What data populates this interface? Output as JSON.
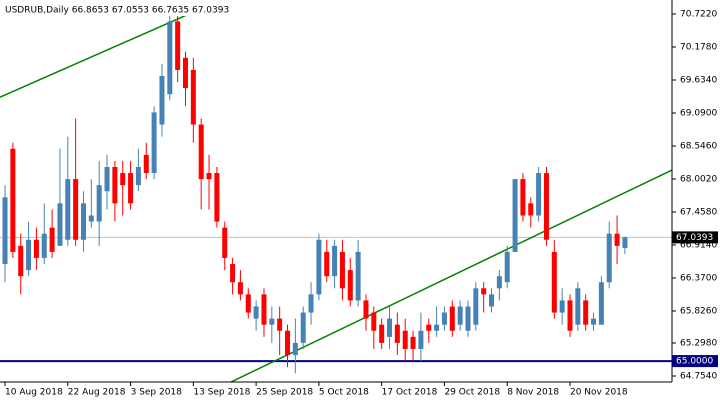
{
  "chart_data": {
    "type": "candlestick",
    "title": "USDRUB,Daily  66.8653 67.0553 66.7635 67.0393",
    "categories": [
      "10 Aug 2018",
      null,
      null,
      null,
      null,
      null,
      null,
      null,
      "22 Aug 2018",
      null,
      null,
      null,
      null,
      null,
      null,
      null,
      "3 Sep 2018",
      null,
      null,
      null,
      null,
      null,
      null,
      null,
      "13 Sep 2018",
      null,
      null,
      null,
      null,
      null,
      null,
      null,
      "25 Sep 2018",
      null,
      null,
      null,
      null,
      null,
      null,
      null,
      "5 Oct 2018",
      null,
      null,
      null,
      null,
      null,
      null,
      null,
      "17 Oct 2018",
      null,
      null,
      null,
      null,
      null,
      null,
      null,
      "29 Oct 2018",
      null,
      null,
      null,
      null,
      null,
      null,
      null,
      "8 Nov 2018",
      null,
      null,
      null,
      null,
      null,
      null,
      null,
      "20 Nov 2018",
      null,
      null,
      null,
      null,
      null,
      null,
      null
    ],
    "open": [
      66.6,
      68.5,
      66.9,
      66.5,
      67.0,
      66.7,
      67.2,
      66.9,
      67.0,
      68.0,
      67.0,
      67.3,
      67.3,
      67.8,
      68.2,
      68.1,
      68.1,
      67.9,
      68.4,
      68.1,
      68.9,
      69.4,
      70.6,
      70.0,
      69.8,
      68.9,
      68.1,
      68.1,
      67.2,
      66.6,
      66.3,
      66.1,
      65.7,
      66.1,
      65.6,
      65.7,
      65.5,
      65.1,
      65.3,
      65.8,
      66.1,
      66.8,
      66.4,
      66.8,
      66.5,
      66.0,
      66.0,
      65.8,
      65.6,
      65.4,
      65.6,
      65.5,
      65.4,
      65.2,
      65.6,
      65.5,
      65.6,
      65.9,
      65.6,
      65.5,
      65.6,
      66.2,
      65.9,
      66.2,
      66.3,
      66.8,
      68.0,
      67.6,
      67.4,
      68.1,
      66.8,
      65.8,
      66.0,
      65.6,
      66.0,
      65.6,
      65.6,
      66.3,
      67.1,
      66.8653
    ],
    "high": [
      67.9,
      68.6,
      67.1,
      67.3,
      67.2,
      67.6,
      67.5,
      68.5,
      68.7,
      69.0,
      67.8,
      68.0,
      68.3,
      68.4,
      68.3,
      68.3,
      68.3,
      68.5,
      68.6,
      69.2,
      69.9,
      70.7,
      70.7,
      70.1,
      70.0,
      69.0,
      68.4,
      68.2,
      67.3,
      66.7,
      66.5,
      66.2,
      66.0,
      66.2,
      65.9,
      65.9,
      65.6,
      65.7,
      65.9,
      66.3,
      67.1,
      67.0,
      67.0,
      67.0,
      66.7,
      67.0,
      66.1,
      65.9,
      65.7,
      65.9,
      65.8,
      65.7,
      65.5,
      65.8,
      65.7,
      65.9,
      65.9,
      66.0,
      66.0,
      66.0,
      66.3,
      66.3,
      66.2,
      66.5,
      66.9,
      68.0,
      68.1,
      67.7,
      68.2,
      68.2,
      67.0,
      66.2,
      66.1,
      66.3,
      66.1,
      65.8,
      66.4,
      67.3,
      67.4,
      67.0553
    ],
    "low": [
      66.3,
      66.7,
      66.1,
      66.4,
      66.5,
      66.6,
      66.7,
      66.9,
      66.9,
      66.9,
      66.8,
      67.2,
      66.9,
      67.5,
      67.3,
      67.4,
      67.5,
      67.8,
      68.0,
      68.0,
      68.7,
      69.3,
      69.6,
      69.2,
      68.6,
      67.5,
      67.5,
      67.2,
      66.5,
      66.1,
      66.0,
      65.7,
      65.5,
      65.4,
      65.3,
      65.1,
      64.9,
      64.8,
      65.2,
      65.6,
      66.0,
      66.3,
      66.2,
      66.0,
      65.9,
      65.9,
      65.5,
      65.2,
      65.2,
      65.2,
      65.1,
      65.0,
      65.0,
      65.0,
      65.3,
      65.4,
      65.5,
      65.4,
      65.5,
      65.4,
      65.5,
      65.8,
      65.8,
      66.0,
      66.2,
      66.8,
      67.3,
      67.2,
      67.3,
      66.9,
      65.7,
      65.6,
      65.4,
      65.5,
      65.5,
      65.5,
      65.6,
      66.2,
      66.6,
      66.7635
    ],
    "close": [
      67.7,
      66.8,
      66.4,
      67.0,
      66.7,
      67.1,
      66.8,
      67.6,
      68.0,
      67.0,
      67.6,
      67.4,
      67.9,
      68.2,
      67.6,
      67.9,
      67.6,
      68.2,
      68.1,
      69.1,
      69.7,
      70.6,
      69.8,
      69.5,
      68.9,
      68.0,
      68.0,
      67.3,
      66.7,
      66.3,
      66.1,
      65.8,
      65.9,
      65.6,
      65.7,
      65.5,
      65.1,
      65.3,
      65.8,
      66.1,
      67.0,
      66.4,
      66.9,
      66.2,
      66.0,
      66.8,
      65.7,
      65.5,
      65.3,
      65.7,
      65.3,
      65.2,
      65.2,
      65.5,
      65.5,
      65.6,
      65.8,
      65.5,
      65.9,
      65.9,
      66.2,
      66.1,
      66.1,
      66.4,
      66.8,
      68.0,
      67.4,
      67.4,
      68.1,
      67.0,
      65.8,
      66.0,
      65.5,
      66.2,
      65.6,
      65.7,
      66.3,
      67.1,
      66.9,
      67.0393
    ],
    "up_color": "#4682b4",
    "down_color": "#ff0000",
    "xlim": [
      -0.64,
      85.0
    ],
    "ylim": [
      64.655,
      70.953
    ],
    "yticks": [
      {
        "value": 70.722,
        "label": "70.7220"
      },
      {
        "value": 70.178,
        "label": "70.1780"
      },
      {
        "value": 69.634,
        "label": "69.6340"
      },
      {
        "value": 69.09,
        "label": "69.0900"
      },
      {
        "value": 68.546,
        "label": "68.5460"
      },
      {
        "value": 68.002,
        "label": "68.0020"
      },
      {
        "value": 67.458,
        "label": "67.4580"
      },
      {
        "value": 66.914,
        "label": "66.9140"
      },
      {
        "value": 66.37,
        "label": "66.3700"
      },
      {
        "value": 65.826,
        "label": "65.8260"
      },
      {
        "value": 65.298,
        "label": "65.2980"
      },
      {
        "value": 64.754,
        "label": "64.7540"
      }
    ],
    "hlines": [
      {
        "value": 67.0393,
        "label": "67.0393",
        "color": "#c0c0c0",
        "label_bg": "#000000"
      },
      {
        "value": 65.0,
        "label": "65.0000",
        "color": "#000080",
        "label_bg": "#000080"
      }
    ],
    "trendlines": [
      {
        "x": [
          -0.64,
          23.4
        ],
        "y": [
          69.35,
          70.72
        ],
        "color": "#008000"
      },
      {
        "x": [
          28.8,
          85.0
        ],
        "y": [
          64.655,
          68.15
        ],
        "color": "#008000"
      }
    ]
  }
}
